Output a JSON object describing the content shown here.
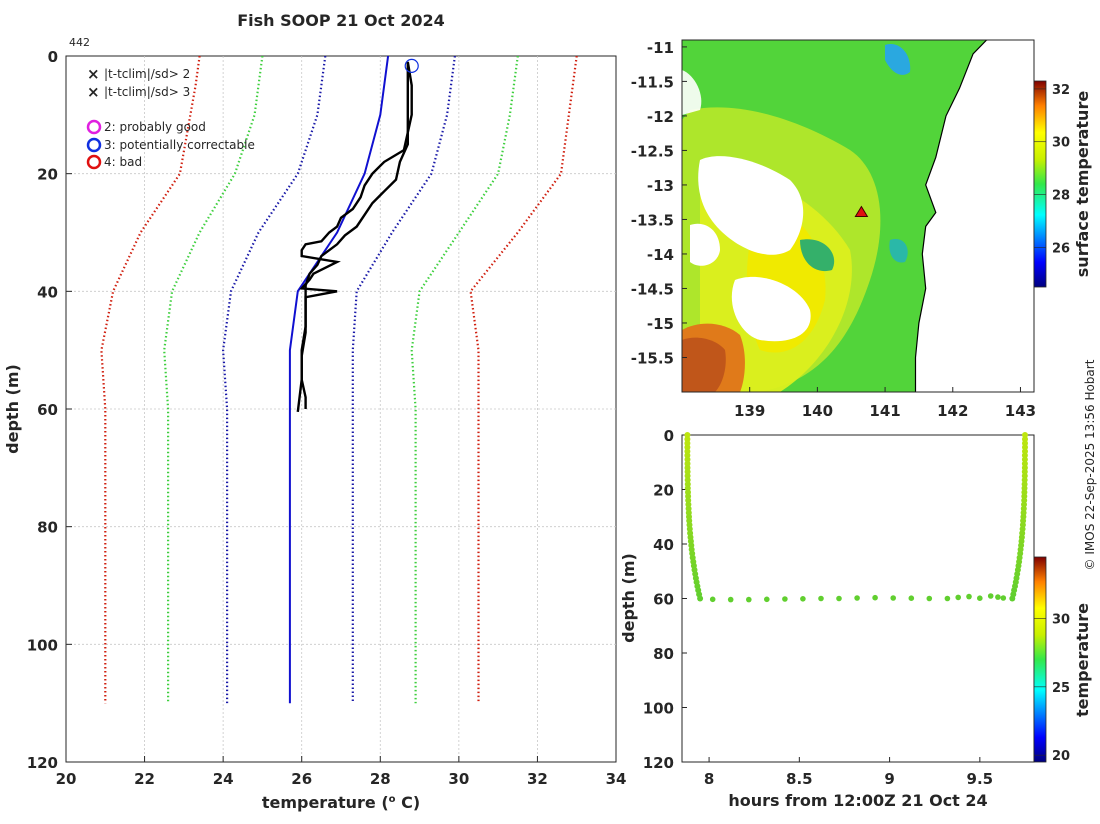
{
  "figure_title": "Fish SOOP 21 Oct 2024",
  "credit": "© IMOS 22-Sep-2025 13:56 Hobart",
  "colors": {
    "clim2": "#3fcf3f",
    "clim3": "#d02010",
    "std1": "#1a1aa8",
    "profile": "#000000",
    "mean": "#1010d0",
    "flag_probably_good": "#e020e0",
    "flag_correctable": "#1030e0",
    "flag_bad": "#e01010",
    "land": "#ffffff",
    "coast": "#000000"
  },
  "chart_data": [
    {
      "type": "line",
      "id": "profile",
      "title": "Fish SOOP 21 Oct 2024",
      "profile_id": "442",
      "xlabel": "temperature (o C)",
      "ylabel": "depth (m)",
      "xlim": [
        20,
        34
      ],
      "ylim": [
        0,
        120
      ],
      "xticks": [
        20,
        22,
        24,
        26,
        28,
        30,
        32,
        34
      ],
      "yticks": [
        0,
        20,
        40,
        60,
        80,
        100,
        120
      ],
      "grid": true,
      "legend": [
        {
          "symbol": "x",
          "color": "#22cc22",
          "label": "|t-tclim|/sd> 2"
        },
        {
          "symbol": "x",
          "color": "#dd1111",
          "label": "|t-tclim|/sd> 3"
        },
        {
          "symbol": "o",
          "color": "#e020e0",
          "label": "2: probably good"
        },
        {
          "symbol": "o",
          "color": "#1030e0",
          "label": "3: potentially correctable"
        },
        {
          "symbol": "o",
          "color": "#e01010",
          "label": "4: bad"
        }
      ],
      "series": [
        {
          "name": "clim_mean",
          "style": "solid",
          "color": "#1010d0",
          "points": [
            [
              28.2,
              0
            ],
            [
              28.0,
              10
            ],
            [
              27.6,
              20
            ],
            [
              26.9,
              30
            ],
            [
              25.9,
              40
            ],
            [
              25.7,
              50
            ],
            [
              25.7,
              60
            ],
            [
              25.7,
              80
            ],
            [
              25.7,
              110
            ]
          ]
        },
        {
          "name": "clim_minus_3sd",
          "style": "dotted",
          "color": "#d02010",
          "points": [
            [
              23.4,
              0
            ],
            [
              23.3,
              5
            ],
            [
              22.9,
              20
            ],
            [
              21.9,
              30
            ],
            [
              21.2,
              40
            ],
            [
              20.9,
              50
            ],
            [
              21.0,
              60
            ],
            [
              21.0,
              80
            ],
            [
              21.0,
              110
            ]
          ]
        },
        {
          "name": "clim_minus_2sd",
          "style": "dotted",
          "color": "#3fcf3f",
          "points": [
            [
              25.0,
              0
            ],
            [
              24.8,
              10
            ],
            [
              24.3,
              20
            ],
            [
              23.4,
              30
            ],
            [
              22.7,
              40
            ],
            [
              22.5,
              50
            ],
            [
              22.6,
              60
            ],
            [
              22.6,
              80
            ],
            [
              22.6,
              110
            ]
          ]
        },
        {
          "name": "clim_minus_1sd",
          "style": "dotted",
          "color": "#1a1aa8",
          "points": [
            [
              26.6,
              0
            ],
            [
              26.4,
              10
            ],
            [
              25.9,
              20
            ],
            [
              24.9,
              30
            ],
            [
              24.2,
              40
            ],
            [
              24.0,
              50
            ],
            [
              24.1,
              60
            ],
            [
              24.1,
              80
            ],
            [
              24.1,
              110
            ]
          ]
        },
        {
          "name": "clim_plus_1sd",
          "style": "dotted",
          "color": "#1a1aa8",
          "points": [
            [
              29.9,
              0
            ],
            [
              29.7,
              10
            ],
            [
              29.3,
              20
            ],
            [
              28.3,
              30
            ],
            [
              27.4,
              40
            ],
            [
              27.3,
              50
            ],
            [
              27.3,
              60
            ],
            [
              27.3,
              80
            ],
            [
              27.3,
              110
            ]
          ]
        },
        {
          "name": "clim_plus_2sd",
          "style": "dotted",
          "color": "#3fcf3f",
          "points": [
            [
              31.5,
              0
            ],
            [
              31.3,
              10
            ],
            [
              31.0,
              20
            ],
            [
              30.0,
              30
            ],
            [
              29.0,
              40
            ],
            [
              28.8,
              50
            ],
            [
              28.9,
              60
            ],
            [
              28.9,
              80
            ],
            [
              28.9,
              110
            ]
          ]
        },
        {
          "name": "clim_plus_3sd",
          "style": "dotted",
          "color": "#d02010",
          "points": [
            [
              33.0,
              0
            ],
            [
              32.9,
              5
            ],
            [
              32.6,
              20
            ],
            [
              31.5,
              30
            ],
            [
              30.3,
              40
            ],
            [
              30.5,
              50
            ],
            [
              30.5,
              60
            ],
            [
              30.5,
              80
            ],
            [
              30.5,
              110
            ]
          ]
        },
        {
          "name": "profile_a",
          "style": "solid",
          "color": "#000000",
          "points": [
            [
              28.7,
              1
            ],
            [
              28.7,
              5
            ],
            [
              28.7,
              10
            ],
            [
              28.7,
              15
            ],
            [
              28.5,
              18
            ],
            [
              28.4,
              21
            ],
            [
              28.1,
              23
            ],
            [
              27.8,
              25
            ],
            [
              27.6,
              27
            ],
            [
              27.4,
              29
            ],
            [
              27.1,
              30.5
            ],
            [
              26.9,
              32
            ],
            [
              26.5,
              34
            ],
            [
              26.4,
              35.5
            ],
            [
              26.2,
              37
            ],
            [
              26.1,
              39
            ],
            [
              26.1,
              40
            ],
            [
              26.1,
              42
            ],
            [
              26.1,
              47
            ],
            [
              26.0,
              51
            ],
            [
              26.0,
              55
            ],
            [
              26.1,
              58
            ],
            [
              26.1,
              60
            ]
          ]
        },
        {
          "name": "profile_b",
          "style": "solid",
          "color": "#000000",
          "points": [
            [
              28.7,
              1
            ],
            [
              28.8,
              5
            ],
            [
              28.8,
              10
            ],
            [
              28.7,
              13
            ],
            [
              28.6,
              16
            ],
            [
              28.1,
              18
            ],
            [
              27.8,
              20
            ],
            [
              27.6,
              22
            ],
            [
              27.5,
              24
            ],
            [
              27.3,
              26
            ],
            [
              27.0,
              27.5
            ],
            [
              26.9,
              29
            ],
            [
              26.7,
              30
            ],
            [
              26.5,
              31.5
            ],
            [
              26.1,
              32
            ],
            [
              26.0,
              33
            ],
            [
              26.0,
              34
            ],
            [
              26.9,
              35
            ],
            [
              26.3,
              37
            ],
            [
              26.2,
              38
            ],
            [
              26.0,
              39.5
            ],
            [
              26.9,
              40
            ],
            [
              26.1,
              41
            ],
            [
              26.1,
              46
            ],
            [
              26.0,
              50
            ],
            [
              26.0,
              55
            ],
            [
              25.9,
              60.5
            ]
          ]
        }
      ],
      "flag_marker": {
        "x": 28.8,
        "y": 1,
        "flag": "3: potentially correctable"
      }
    },
    {
      "type": "heatmap",
      "id": "map",
      "title": "",
      "xlim": [
        138,
        143.2
      ],
      "ylim": [
        -16,
        -10.9
      ],
      "xticks": [
        139,
        140,
        141,
        142,
        143
      ],
      "yticks": [
        -11,
        -11.5,
        -12,
        -12.5,
        -13,
        -13.5,
        -14,
        -14.5,
        -15,
        -15.5
      ],
      "xticklabels": [
        "139",
        "140",
        "141",
        "142",
        "143"
      ],
      "yticklabels": [
        "-11",
        "-11.5",
        "-12",
        "-12.5",
        "-13",
        "-13.5",
        "-14",
        "-14.5",
        "-15",
        "-15.5"
      ],
      "colorbar": {
        "label": "surface temperature",
        "range": [
          24.5,
          32.3
        ],
        "ticks": [
          26,
          28,
          30,
          32
        ],
        "ticklabels": [
          "26",
          "28",
          "30",
          "32"
        ]
      },
      "field": {
        "background_temp": 28.0,
        "warm_core_temp": 29.7,
        "hot_sw_temp": 31.5,
        "cool_patch_temp": 26.5
      },
      "profile_location": {
        "lon": 140.65,
        "lat": -13.4
      },
      "coastline": [
        [
          141.45,
          -16.0
        ],
        [
          141.45,
          -15.5
        ],
        [
          141.5,
          -15.0
        ],
        [
          141.6,
          -14.5
        ],
        [
          141.55,
          -14.0
        ],
        [
          141.6,
          -13.6
        ],
        [
          141.75,
          -13.4
        ],
        [
          141.6,
          -13.0
        ],
        [
          141.75,
          -12.6
        ],
        [
          141.9,
          -12.0
        ],
        [
          142.1,
          -11.6
        ],
        [
          142.3,
          -11.1
        ],
        [
          142.5,
          -10.9
        ]
      ]
    },
    {
      "type": "scatter",
      "id": "track",
      "xlabel": "hours from 12:00Z 21 Oct 24",
      "ylabel": "depth (m)",
      "xlim": [
        7.85,
        9.8
      ],
      "ylim": [
        0,
        120
      ],
      "xticks": [
        8,
        8.5,
        9,
        9.5
      ],
      "xticklabels": [
        "8",
        "8.5",
        "9",
        "9.5"
      ],
      "yticks": [
        0,
        20,
        40,
        60,
        80,
        100,
        120
      ],
      "colorbar": {
        "label": "temperature",
        "range": [
          19.5,
          34.5
        ],
        "ticks": [
          20,
          25,
          30
        ],
        "ticklabels": [
          "20",
          "25",
          "30"
        ]
      },
      "descent": {
        "t_start": 7.88,
        "t_end": 7.95,
        "depth_max": 60,
        "temp_top": 28.8,
        "temp_bottom": 26.0
      },
      "ascent": {
        "t_start": 9.68,
        "t_end": 9.75,
        "depth_max": 60,
        "temp_top": 28.8,
        "temp_bottom": 26.0
      },
      "bottom_points": {
        "hours": [
          8.02,
          8.12,
          8.22,
          8.32,
          8.42,
          8.52,
          8.62,
          8.72,
          8.82,
          8.92,
          9.02,
          9.12,
          9.22,
          9.32,
          9.38,
          9.44,
          9.5,
          9.56,
          9.6,
          9.63
        ],
        "depths": [
          60.3,
          60.4,
          60.4,
          60.3,
          60.2,
          60.1,
          60.0,
          60.0,
          59.8,
          59.7,
          59.8,
          59.9,
          60.0,
          60.0,
          59.6,
          59.3,
          59.9,
          59.1,
          59.5,
          59.8
        ],
        "temp": 26.0
      }
    }
  ]
}
